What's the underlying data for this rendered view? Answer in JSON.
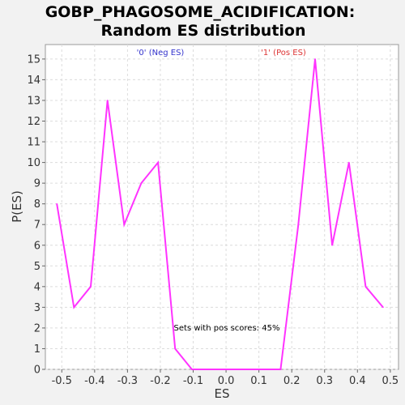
{
  "chart_data": {
    "type": "line",
    "title_line1": "GOBP_PHAGOSOME_ACIDIFICATION:",
    "title_line2": "Random ES distribution",
    "xlabel": "ES",
    "ylabel": "P(ES)",
    "xlim": [
      -0.55,
      0.525
    ],
    "ylim": [
      0,
      15.7
    ],
    "x_ticks": [
      -0.5,
      -0.4,
      -0.3,
      -0.2,
      -0.1,
      0.0,
      0.1,
      0.2,
      0.3,
      0.4,
      0.5
    ],
    "x_tick_labels": [
      "-0.5",
      "-0.4",
      "-0.3",
      "-0.2",
      "-0.1",
      "0.0",
      "0.1",
      "0.2",
      "0.3",
      "0.4",
      "0.5"
    ],
    "y_ticks": [
      0,
      1,
      2,
      3,
      4,
      5,
      6,
      7,
      8,
      9,
      10,
      11,
      12,
      13,
      14,
      15
    ],
    "grid": true,
    "series": [
      {
        "color": "#ff33ff",
        "x": [
          -0.515,
          -0.463,
          -0.412,
          -0.361,
          -0.31,
          -0.258,
          -0.207,
          -0.155,
          -0.104,
          -0.053,
          -0.002,
          0.05,
          0.101,
          0.166,
          0.22,
          0.271,
          0.323,
          0.374,
          0.425,
          0.478
        ],
        "y": [
          8,
          3,
          4,
          13,
          7,
          9,
          10,
          1,
          0,
          0,
          0,
          0,
          0,
          0,
          7,
          15,
          6,
          10,
          4,
          3
        ]
      }
    ],
    "annotations": {
      "neg_label": "'0' (Neg ES)",
      "neg_color": "#3333cc",
      "pos_label": "'1' (Pos ES)",
      "pos_color": "#dd3333",
      "pos_scores_text": "Sets with pos scores: 45%"
    }
  }
}
